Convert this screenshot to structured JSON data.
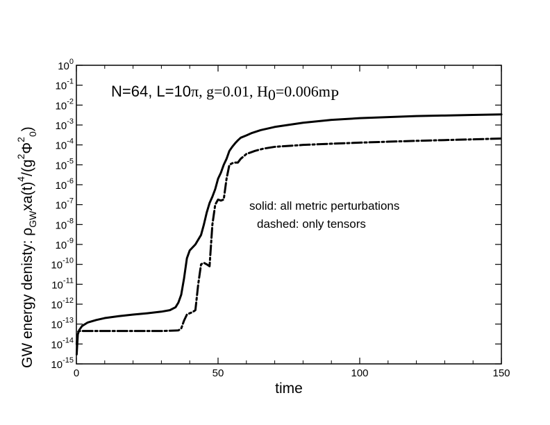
{
  "chart_data": {
    "type": "line",
    "xlabel": "time",
    "ylabel_parts": {
      "prefix": "GW energy denisty: ",
      "rho": "ρ",
      "rho_sub": "GW",
      "mid": "xa(t)",
      "mid_sup": "4",
      "tail": "/(g",
      "tail_sup": "2",
      "phi": "Φ",
      "phi_sup": "2",
      "phi_sub": "0",
      "close": ")"
    },
    "xlim": [
      0,
      150
    ],
    "x_ticks": [
      "0",
      "50",
      "100",
      "150"
    ],
    "y_scale": "log",
    "ylim_exp": [
      -15,
      0
    ],
    "y_tick_base": "10",
    "y_tick_exponents": [
      "0",
      "-1",
      "-2",
      "-3",
      "-4",
      "-5",
      "-6",
      "-7",
      "-8",
      "-9",
      "-10",
      "-11",
      "-12",
      "-13",
      "-14",
      "-15"
    ],
    "annotation": {
      "n": "N=64, L=10",
      "pi": "π",
      "g": ", g=0.01, H",
      "h_sub": "0",
      "h_val": "=0.006m",
      "m_sub": "P"
    },
    "legend_lines": [
      "solid: all metric perturbations",
      "dashed: only tensors"
    ],
    "series": [
      {
        "style": "solid",
        "color": "#000000",
        "x": [
          0.1,
          0.5,
          1,
          2,
          4,
          7,
          10,
          15,
          20,
          25,
          30,
          33,
          35,
          36,
          37,
          38,
          39,
          40,
          42,
          44,
          45,
          46,
          47,
          48,
          49,
          50,
          51,
          52,
          53,
          54,
          55,
          56,
          57,
          58,
          60,
          62,
          65,
          70,
          80,
          90,
          100,
          110,
          120,
          130,
          140,
          150
        ],
        "value": [
          3e-15,
          3e-14,
          5e-14,
          8e-14,
          1.2e-13,
          1.6e-13,
          2e-13,
          2.5e-13,
          3e-13,
          3.5e-13,
          4.2e-13,
          5e-13,
          7e-13,
          1.2e-12,
          3e-12,
          2e-11,
          2e-10,
          5e-10,
          1e-09,
          3e-09,
          1e-08,
          4e-08,
          1.2e-07,
          2.5e-07,
          6e-07,
          2e-06,
          4e-06,
          1e-05,
          2e-05,
          5e-05,
          8e-05,
          0.00012,
          0.00017,
          0.00023,
          0.0003,
          0.0004,
          0.00055,
          0.0008,
          0.0013,
          0.0018,
          0.0022,
          0.0025,
          0.0028,
          0.003,
          0.0032,
          0.0034
        ]
      },
      {
        "style": "dashed",
        "color": "#000000",
        "x": [
          0.1,
          0.5,
          1,
          3,
          6,
          10,
          20,
          30,
          36,
          37,
          38,
          39,
          40,
          41,
          42,
          43,
          44,
          45,
          46,
          47,
          48,
          49,
          50,
          51,
          52,
          53,
          54,
          55,
          56,
          57,
          58,
          60,
          63,
          66,
          70,
          80,
          90,
          100,
          110,
          120,
          130,
          140,
          150
        ],
        "value": [
          1e-14,
          4e-14,
          4.5e-14,
          4.5e-14,
          4.5e-14,
          4.5e-14,
          4.5e-14,
          4.5e-14,
          4.8e-14,
          6e-14,
          1.5e-13,
          3e-13,
          3.5e-13,
          4e-13,
          5e-13,
          1e-11,
          1e-10,
          1.2e-10,
          1e-10,
          8e-11,
          1e-08,
          1e-07,
          1.8e-07,
          1.6e-07,
          1.8e-07,
          2e-06,
          1e-05,
          1.2e-05,
          1.3e-05,
          1.3e-05,
          2e-05,
          3.5e-05,
          5e-05,
          6.5e-05,
          8e-05,
          0.0001,
          0.000115,
          0.00013,
          0.000145,
          0.00016,
          0.000175,
          0.00019,
          0.00021
        ]
      }
    ]
  }
}
